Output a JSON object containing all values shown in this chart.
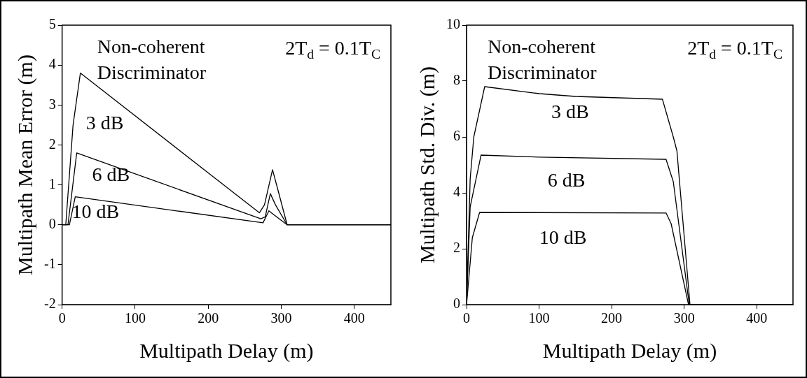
{
  "chart_data": [
    {
      "type": "line",
      "xlabel": "Multipath Delay (m)",
      "ylabel": "Multipath Mean Error (m)",
      "annotations": [
        "Non-coherent Discriminator",
        "2T$_{d}$ = 0.1T$_{C}$"
      ],
      "xlim": [
        0,
        450
      ],
      "xticks": [
        0,
        100,
        200,
        300,
        400
      ],
      "ylim": [
        -2,
        5
      ],
      "yticks": [
        -2,
        -1,
        0,
        1,
        2,
        3,
        4,
        5
      ],
      "grid": false,
      "legend": false,
      "marker": "none",
      "line_style": "solid",
      "series": [
        {
          "name": "3 dB",
          "color": "#000000",
          "x": [
            0,
            5,
            15,
            25,
            270,
            277,
            288,
            295,
            308,
            450
          ],
          "values": [
            0,
            0,
            2.5,
            3.8,
            0.3,
            0.5,
            1.38,
            0.9,
            0,
            0
          ]
        },
        {
          "name": "6 dB",
          "color": "#000000",
          "x": [
            0,
            8,
            20,
            272,
            278,
            285,
            292,
            308,
            450
          ],
          "values": [
            0,
            0,
            1.8,
            0.15,
            0.2,
            0.78,
            0.5,
            0,
            0
          ]
        },
        {
          "name": "10 dB",
          "color": "#000000",
          "x": [
            0,
            10,
            18,
            275,
            283,
            290,
            308,
            450
          ],
          "values": [
            0,
            0,
            0.7,
            0.05,
            0.35,
            0.25,
            0,
            0
          ]
        }
      ]
    },
    {
      "type": "line",
      "xlabel": "Multipath Delay (m)",
      "ylabel": "Multipath Std. Div. (m)",
      "annotations": [
        "Non-coherent Discriminator",
        "2T$_{d}$ = 0.1T$_{C}$"
      ],
      "xlim": [
        0,
        450
      ],
      "xticks": [
        0,
        100,
        200,
        300,
        400
      ],
      "ylim": [
        0,
        10
      ],
      "yticks": [
        0,
        2,
        4,
        6,
        8,
        10
      ],
      "grid": false,
      "legend": false,
      "marker": "none",
      "line_style": "solid",
      "series": [
        {
          "name": "3 dB",
          "color": "#000000",
          "x": [
            0,
            5,
            10,
            25,
            100,
            150,
            270,
            285,
            290,
            308,
            450
          ],
          "values": [
            0,
            4.5,
            6,
            7.8,
            7.55,
            7.45,
            7.35,
            6,
            5.5,
            0,
            0
          ]
        },
        {
          "name": "6 dB",
          "color": "#000000",
          "x": [
            0,
            5,
            20,
            100,
            275,
            285,
            307,
            450
          ],
          "values": [
            0,
            3.5,
            5.35,
            5.28,
            5.2,
            4.4,
            0,
            0
          ]
        },
        {
          "name": "10 dB",
          "color": "#000000",
          "x": [
            0,
            8,
            18,
            275,
            282,
            306,
            450
          ],
          "values": [
            0,
            2.4,
            3.3,
            3.28,
            2.9,
            0,
            0
          ]
        }
      ]
    }
  ]
}
